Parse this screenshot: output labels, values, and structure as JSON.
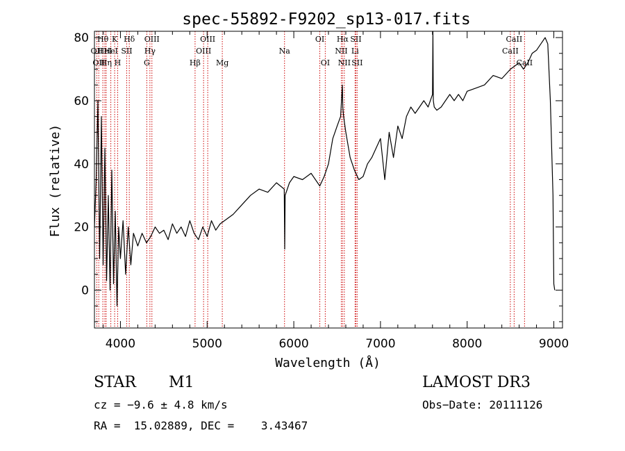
{
  "chart_data": {
    "type": "line",
    "title": "spec-55892-F9202_sp13-017.fits",
    "xlabel": "Wavelength (Å)",
    "ylabel": "Flux (relative)",
    "xlim": [
      3700,
      9100
    ],
    "ylim": [
      -12,
      82
    ],
    "xticks": [
      4000,
      5000,
      6000,
      7000,
      8000,
      9000
    ],
    "yticks": [
      0,
      20,
      40,
      60,
      80
    ],
    "grid": false,
    "legend": "none",
    "line_color": "#000000",
    "marker_color": "#cc0000",
    "series": [
      {
        "x": [
          3700,
          3720,
          3740,
          3760,
          3780,
          3800,
          3820,
          3840,
          3860,
          3880,
          3900,
          3920,
          3940,
          3960,
          3980,
          4000,
          4030,
          4060,
          4090,
          4120,
          4150,
          4200,
          4250,
          4300,
          4350,
          4400,
          4450,
          4500,
          4550,
          4600,
          4650,
          4700,
          4750,
          4800,
          4850,
          4900,
          4950,
          5000,
          5050,
          5100,
          5150,
          5200,
          5300,
          5400,
          5500,
          5600,
          5700,
          5800,
          5890,
          5895,
          5900,
          5950,
          6000,
          6100,
          6200,
          6300,
          6350,
          6400,
          6450,
          6500,
          6540,
          6560,
          6565,
          6575,
          6600,
          6650,
          6700,
          6750,
          6800,
          6850,
          6900,
          6950,
          7000,
          7050,
          7100,
          7150,
          7200,
          7250,
          7300,
          7350,
          7400,
          7450,
          7500,
          7550,
          7600,
          7605,
          7610,
          7620,
          7650,
          7700,
          7750,
          7800,
          7850,
          7900,
          7950,
          8000,
          8100,
          8200,
          8300,
          8400,
          8500,
          8600,
          8650,
          8700,
          8750,
          8800,
          8850,
          8900,
          8930,
          8960,
          8990,
          9000,
          9010
        ],
        "y": [
          20,
          35,
          60,
          10,
          55,
          8,
          45,
          3,
          30,
          0,
          38,
          2,
          25,
          -5,
          20,
          10,
          22,
          5,
          20,
          8,
          18,
          14,
          18,
          15,
          17,
          20,
          18,
          19,
          16,
          21,
          18,
          20,
          17,
          22,
          18,
          16,
          20,
          17,
          22,
          19,
          21,
          22,
          24,
          27,
          30,
          32,
          31,
          34,
          32,
          13,
          30,
          34,
          36,
          35,
          37,
          33,
          36,
          40,
          48,
          52,
          55,
          65,
          58,
          55,
          50,
          42,
          38,
          35,
          36,
          40,
          42,
          45,
          48,
          35,
          50,
          42,
          52,
          48,
          55,
          58,
          56,
          58,
          60,
          58,
          62,
          82,
          60,
          58,
          57,
          58,
          60,
          62,
          60,
          62,
          60,
          63,
          64,
          65,
          68,
          67,
          70,
          72,
          70,
          72,
          75,
          76,
          78,
          80,
          78,
          60,
          30,
          2,
          0
        ]
      }
    ],
    "line_markers": [
      {
        "x": 3727,
        "label": "OII",
        "row": 2
      },
      {
        "x": 3750,
        "label": "OII",
        "row": 3
      },
      {
        "x": 3797,
        "label": "Hθ",
        "row": 1
      },
      {
        "x": 3820,
        "label": "HeI",
        "row": 2
      },
      {
        "x": 3835,
        "label": "Hη",
        "row": 3
      },
      {
        "x": 3889,
        "label": "HeI",
        "row": 2
      },
      {
        "x": 3933,
        "label": "K",
        "row": 1
      },
      {
        "x": 3968,
        "label": "H",
        "row": 3
      },
      {
        "x": 4072,
        "label": "SII",
        "row": 2
      },
      {
        "x": 4102,
        "label": "Hδ",
        "row": 1
      },
      {
        "x": 4304,
        "label": "G",
        "row": 3
      },
      {
        "x": 4340,
        "label": "Hγ",
        "row": 2
      },
      {
        "x": 4363,
        "label": "OIII",
        "row": 1
      },
      {
        "x": 4861,
        "label": "Hβ",
        "row": 3
      },
      {
        "x": 4959,
        "label": "OIII",
        "row": 2
      },
      {
        "x": 5007,
        "label": "OIII",
        "row": 1
      },
      {
        "x": 5175,
        "label": "Mg",
        "row": 3
      },
      {
        "x": 5893,
        "label": "Na",
        "row": 2
      },
      {
        "x": 6300,
        "label": "OI",
        "row": 1
      },
      {
        "x": 6363,
        "label": "OI",
        "row": 3
      },
      {
        "x": 6548,
        "label": "NII",
        "row": 2
      },
      {
        "x": 6563,
        "label": "Hα",
        "row": 1
      },
      {
        "x": 6583,
        "label": "NII",
        "row": 3
      },
      {
        "x": 6707,
        "label": "Li",
        "row": 2
      },
      {
        "x": 6716,
        "label": "SII",
        "row": 1
      },
      {
        "x": 6731,
        "label": "SII",
        "row": 3
      },
      {
        "x": 8498,
        "label": "CaII",
        "row": 2
      },
      {
        "x": 8542,
        "label": "CaII",
        "row": 1
      },
      {
        "x": 8662,
        "label": "CaII",
        "row": 3
      }
    ]
  },
  "info": {
    "obj_class": "STAR",
    "subclass": "M1",
    "survey": "LAMOST DR3",
    "cz": "cz = −9.6 ± 4.8 km/s",
    "obs_date": "Obs−Date: 20111126",
    "radec": "RA =  15.02889, DEC =    3.43467"
  }
}
